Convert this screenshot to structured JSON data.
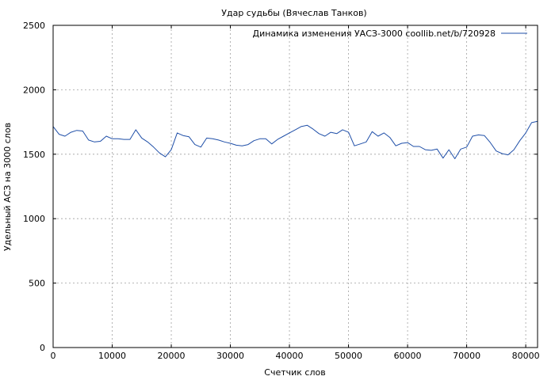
{
  "chart_data": {
    "type": "line",
    "title": "Удар судьбы (Вячеслав Танков)",
    "xlabel": "Счетчик слов",
    "ylabel": "Удельный АСЗ на 3000 слов",
    "xlim": [
      0,
      82000
    ],
    "ylim": [
      0,
      2500
    ],
    "xticks": [
      "0",
      "10000",
      "20000",
      "30000",
      "40000",
      "50000",
      "60000",
      "70000",
      "80000"
    ],
    "yticks": [
      "0",
      "500",
      "1000",
      "1500",
      "2000",
      "2500"
    ],
    "grid": true,
    "legend_position": "top-right",
    "colors": {
      "series": "#1f4fa8"
    },
    "series": [
      {
        "name": "Динамика изменения УАСЗ-3000 coollib.net/b/720928",
        "x": [
          0,
          1000,
          2000,
          3000,
          4000,
          5000,
          6000,
          7000,
          8000,
          9000,
          10000,
          11000,
          12000,
          13000,
          14000,
          15000,
          16000,
          17000,
          18000,
          19000,
          20000,
          21000,
          22000,
          23000,
          24000,
          25000,
          26000,
          27000,
          28000,
          29000,
          30000,
          31000,
          32000,
          33000,
          34000,
          35000,
          36000,
          37000,
          38000,
          39000,
          40000,
          41000,
          42000,
          43000,
          44000,
          45000,
          46000,
          47000,
          48000,
          49000,
          50000,
          51000,
          52000,
          53000,
          54000,
          55000,
          56000,
          57000,
          58000,
          59000,
          60000,
          61000,
          62000,
          63000,
          64000,
          65000,
          66000,
          67000,
          68000,
          69000,
          70000,
          71000,
          72000,
          73000,
          74000,
          75000,
          76000,
          77000,
          78000,
          79000,
          80000,
          81000,
          82000
        ],
        "values": [
          1715,
          1655,
          1640,
          1670,
          1685,
          1680,
          1610,
          1595,
          1600,
          1640,
          1620,
          1620,
          1615,
          1615,
          1690,
          1625,
          1595,
          1555,
          1510,
          1480,
          1535,
          1665,
          1645,
          1635,
          1575,
          1555,
          1625,
          1620,
          1610,
          1595,
          1585,
          1570,
          1565,
          1575,
          1605,
          1620,
          1620,
          1580,
          1615,
          1640,
          1665,
          1690,
          1715,
          1725,
          1695,
          1660,
          1640,
          1670,
          1660,
          1690,
          1670,
          1565,
          1580,
          1595,
          1675,
          1640,
          1665,
          1630,
          1565,
          1585,
          1590,
          1560,
          1560,
          1535,
          1530,
          1540,
          1470,
          1535,
          1465,
          1540,
          1555,
          1640,
          1650,
          1645,
          1590,
          1525,
          1505,
          1495,
          1535,
          1605,
          1665,
          1745,
          1755
        ]
      }
    ]
  }
}
